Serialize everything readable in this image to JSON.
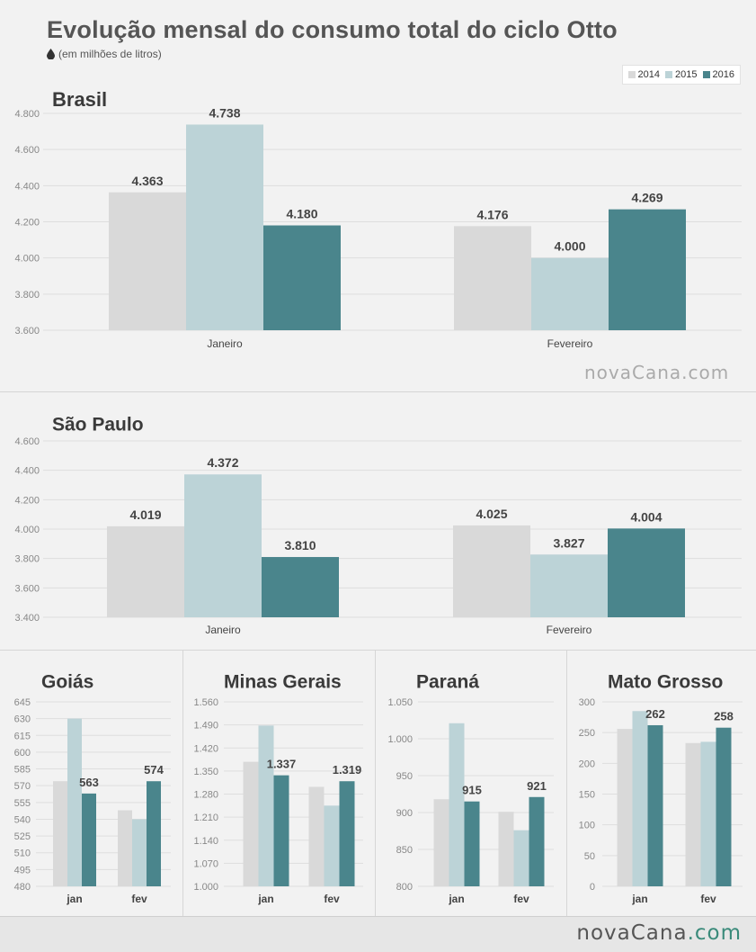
{
  "page": {
    "title": "Evolução mensal do consumo total do ciclo Otto",
    "subtitle": "(em milhões de litros)",
    "legend": [
      "2014",
      "2015",
      "2016"
    ],
    "colors": [
      "#d9d9d9",
      "#bcd3d7",
      "#4a858c"
    ],
    "watermark_mid": "novaCana.com",
    "watermark_footer_a": "novaCana",
    "watermark_footer_b": ".com"
  },
  "chart_data": [
    {
      "type": "bar",
      "title": "Brasil",
      "categories": [
        "Janeiro",
        "Fevereiro"
      ],
      "series": [
        {
          "name": "2014",
          "values": [
            4363,
            4176
          ]
        },
        {
          "name": "2015",
          "values": [
            4738,
            4000
          ]
        },
        {
          "name": "2016",
          "values": [
            4180,
            4269
          ]
        }
      ],
      "ylim": [
        3600,
        4800
      ],
      "yticks": [
        "3.600",
        "3.800",
        "4.000",
        "4.200",
        "4.400",
        "4.600",
        "4.800"
      ],
      "labels": [
        [
          "4.363",
          "4.738",
          "4.180"
        ],
        [
          "4.176",
          "4.000",
          "4.269"
        ]
      ],
      "grid": true
    },
    {
      "type": "bar",
      "title": "São Paulo",
      "categories": [
        "Janeiro",
        "Fevereiro"
      ],
      "series": [
        {
          "name": "2014",
          "values": [
            4019,
            4025
          ]
        },
        {
          "name": "2015",
          "values": [
            4372,
            3827
          ]
        },
        {
          "name": "2016",
          "values": [
            3810,
            4004
          ]
        }
      ],
      "ylim": [
        3400,
        4600
      ],
      "yticks": [
        "3.400",
        "3.600",
        "3.800",
        "4.000",
        "4.200",
        "4.400",
        "4.600"
      ],
      "labels": [
        [
          "4.019",
          "4.372",
          "3.810"
        ],
        [
          "4.025",
          "3.827",
          "4.004"
        ]
      ],
      "grid": true
    },
    {
      "type": "bar",
      "title": "Goiás",
      "categories": [
        "jan",
        "fev"
      ],
      "series": [
        {
          "name": "2014",
          "values": [
            574,
            548
          ]
        },
        {
          "name": "2015",
          "values": [
            630,
            540
          ]
        },
        {
          "name": "2016",
          "values": [
            563,
            574
          ]
        }
      ],
      "ylim": [
        480,
        645
      ],
      "yticks": [
        "480",
        "495",
        "510",
        "525",
        "540",
        "555",
        "570",
        "585",
        "600",
        "615",
        "630",
        "645"
      ],
      "labels": [
        [
          "",
          "",
          "563"
        ],
        [
          "",
          "",
          "574"
        ]
      ],
      "grid": true
    },
    {
      "type": "bar",
      "title": "Minas Gerais",
      "categories": [
        "jan",
        "fev"
      ],
      "series": [
        {
          "name": "2014",
          "values": [
            1378,
            1302
          ]
        },
        {
          "name": "2015",
          "values": [
            1488,
            1245
          ]
        },
        {
          "name": "2016",
          "values": [
            1337,
            1319
          ]
        }
      ],
      "ylim": [
        1000,
        1560
      ],
      "yticks": [
        "1.000",
        "1.070",
        "1.140",
        "1.210",
        "1.280",
        "1.350",
        "1.420",
        "1.490",
        "1.560"
      ],
      "labels": [
        [
          "",
          "",
          "1.337"
        ],
        [
          "",
          "",
          "1.319"
        ]
      ],
      "grid": true
    },
    {
      "type": "bar",
      "title": "Paraná",
      "categories": [
        "jan",
        "fev"
      ],
      "series": [
        {
          "name": "2014",
          "values": [
            918,
            901
          ]
        },
        {
          "name": "2015",
          "values": [
            1021,
            876
          ]
        },
        {
          "name": "2016",
          "values": [
            915,
            921
          ]
        }
      ],
      "ylim": [
        800,
        1050
      ],
      "yticks": [
        "800",
        "850",
        "900",
        "950",
        "1.000",
        "1.050"
      ],
      "labels": [
        [
          "",
          "",
          "915"
        ],
        [
          "",
          "",
          "921"
        ]
      ],
      "grid": true
    },
    {
      "type": "bar",
      "title": "Mato Grosso",
      "categories": [
        "jan",
        "fev"
      ],
      "series": [
        {
          "name": "2014",
          "values": [
            256,
            233
          ]
        },
        {
          "name": "2015",
          "values": [
            285,
            235
          ]
        },
        {
          "name": "2016",
          "values": [
            262,
            258
          ]
        }
      ],
      "ylim": [
        0,
        300
      ],
      "yticks": [
        "0",
        "50",
        "100",
        "150",
        "200",
        "250",
        "300"
      ],
      "labels": [
        [
          "",
          "",
          "262"
        ],
        [
          "",
          "",
          "258"
        ]
      ],
      "grid": true
    }
  ]
}
